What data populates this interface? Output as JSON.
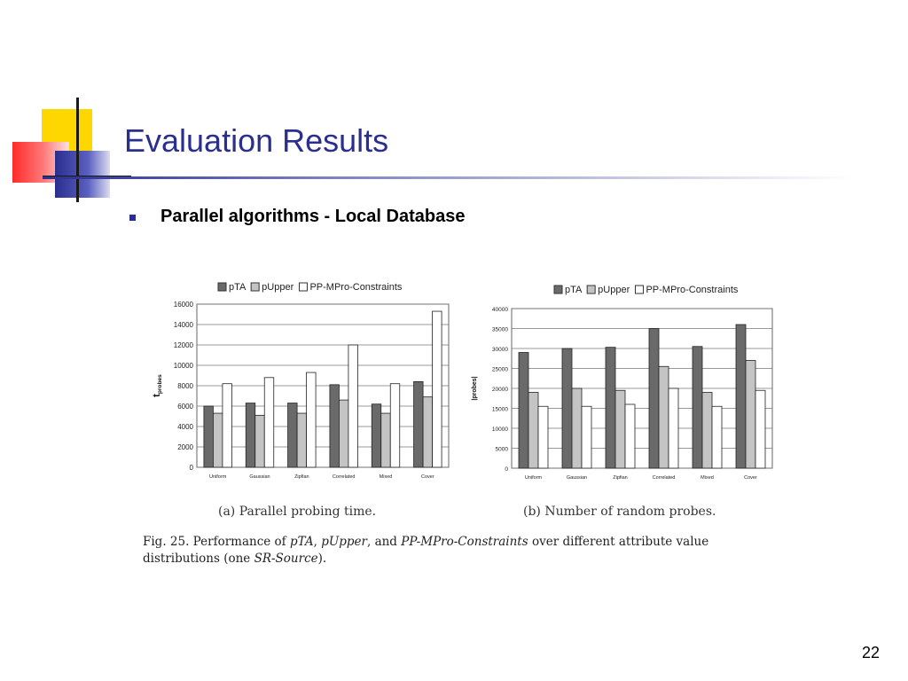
{
  "slide": {
    "title": "Evaluation Results",
    "bullet": "Parallel algorithms - Local Database",
    "page_number": "22",
    "accent_colors": {
      "yellow": "#ffd700",
      "red": "#ff3b3b",
      "blue": "#2a2f8f",
      "gray": "#d8d8d8"
    }
  },
  "legend": [
    "pTA",
    "pUpper",
    "PP-MPro-Constraints"
  ],
  "series_colors": [
    "#6a6a6a",
    "#c4c4c4",
    "#ffffff"
  ],
  "chart_data": [
    {
      "type": "bar",
      "categories": [
        "Uniform",
        "Gaussian",
        "Zipfian",
        "Correlated",
        "Mixed",
        "Cover"
      ],
      "series": [
        {
          "name": "pTA",
          "values": [
            6000,
            6300,
            6300,
            8100,
            6200,
            8400
          ]
        },
        {
          "name": "pUpper",
          "values": [
            5300,
            5100,
            5300,
            6600,
            5300,
            6900
          ]
        },
        {
          "name": "PP-MPro-Constraints",
          "values": [
            8200,
            8800,
            9300,
            12000,
            8200,
            15300
          ]
        }
      ],
      "ylim": [
        0,
        16000
      ],
      "yticks": [
        0,
        2000,
        4000,
        6000,
        8000,
        10000,
        12000,
        14000,
        16000
      ],
      "ylabel": "t",
      "ylabel_sub": "probes",
      "legend_position": "top",
      "grid": true,
      "caption": "(a) Parallel probing time."
    },
    {
      "type": "bar",
      "categories": [
        "Uniform",
        "Gaussian",
        "Zipfian",
        "Correlated",
        "Mixed",
        "Cover"
      ],
      "series": [
        {
          "name": "pTA",
          "values": [
            29000,
            30000,
            30300,
            35000,
            30500,
            36000
          ]
        },
        {
          "name": "pUpper",
          "values": [
            19000,
            20000,
            19500,
            25500,
            19000,
            27000
          ]
        },
        {
          "name": "PP-MPro-Constraints",
          "values": [
            15500,
            15500,
            16000,
            20000,
            15500,
            19500
          ]
        }
      ],
      "ylim": [
        0,
        40000
      ],
      "yticks": [
        0,
        5000,
        10000,
        15000,
        20000,
        25000,
        30000,
        35000,
        40000
      ],
      "ylabel": "|probes|",
      "legend_position": "top",
      "grid": true,
      "caption": "(b) Number of random probes."
    }
  ],
  "figure_caption": {
    "line1_parts": [
      "Fig. 25.   Performance of ",
      "pTA",
      ", ",
      "pUpper",
      ", and ",
      "PP-MPro-Constraints",
      " over different attribute value"
    ],
    "line2_parts": [
      "distributions (one ",
      "SR-Source",
      ")."
    ]
  }
}
